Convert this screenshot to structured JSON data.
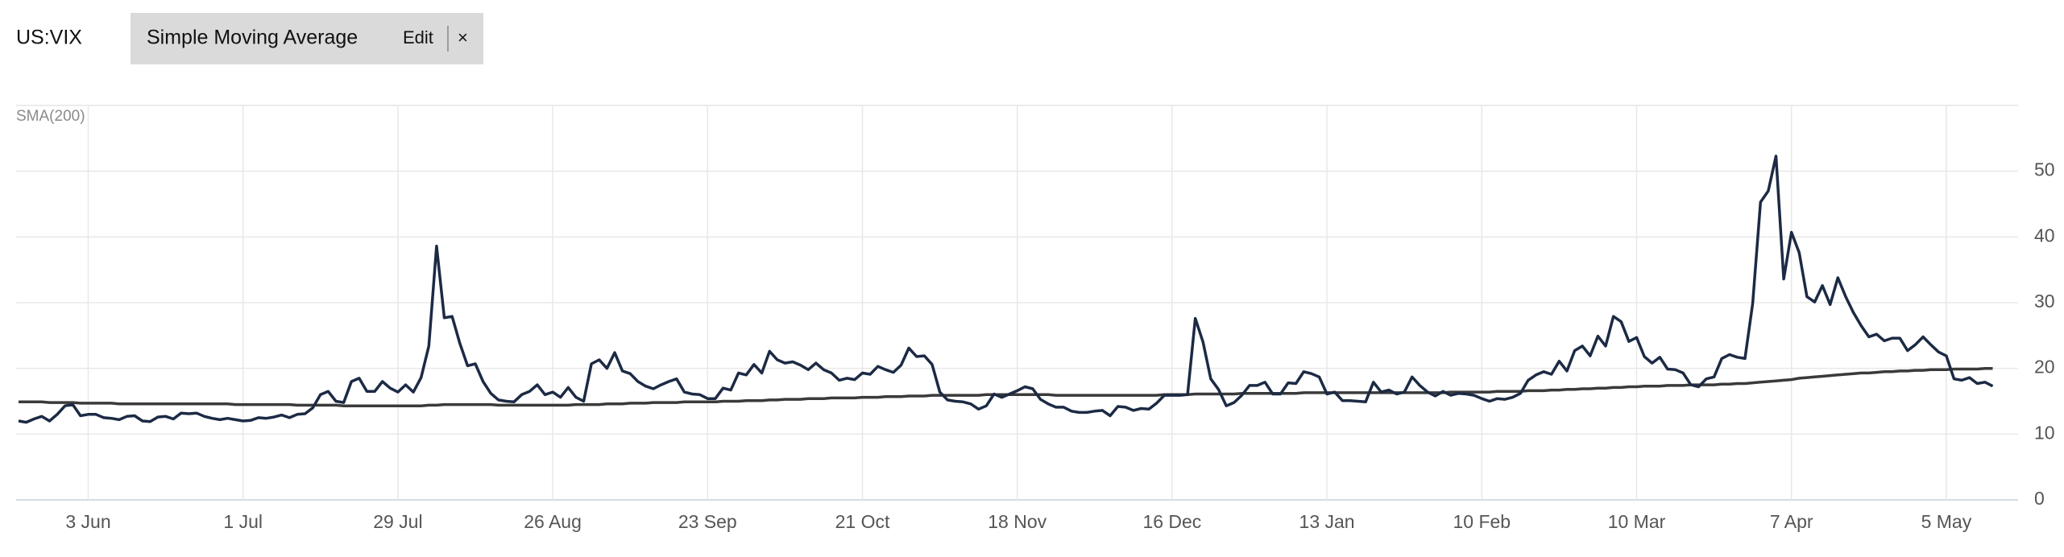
{
  "indicator_chip": {
    "label": "Simple Moving Average",
    "edit": "Edit",
    "close": "×"
  },
  "chart_data": {
    "type": "line",
    "categories": [
      null,
      null,
      null,
      null,
      null,
      null,
      null,
      null,
      null,
      "3 Jun",
      null,
      null,
      null,
      null,
      null,
      null,
      null,
      null,
      null,
      null,
      null,
      null,
      null,
      null,
      null,
      null,
      null,
      null,
      null,
      "1 Jul",
      null,
      null,
      null,
      null,
      null,
      null,
      null,
      null,
      null,
      null,
      null,
      null,
      null,
      null,
      null,
      null,
      null,
      null,
      null,
      "29 Jul",
      null,
      null,
      null,
      null,
      null,
      null,
      null,
      null,
      null,
      null,
      null,
      null,
      null,
      null,
      null,
      null,
      null,
      null,
      null,
      "26 Aug",
      null,
      null,
      null,
      null,
      null,
      null,
      null,
      null,
      null,
      null,
      null,
      null,
      null,
      null,
      null,
      null,
      null,
      null,
      null,
      "23 Sep",
      null,
      null,
      null,
      null,
      null,
      null,
      null,
      null,
      null,
      null,
      null,
      null,
      null,
      null,
      null,
      null,
      null,
      null,
      null,
      "21 Oct",
      null,
      null,
      null,
      null,
      null,
      null,
      null,
      null,
      null,
      null,
      null,
      null,
      null,
      null,
      null,
      null,
      null,
      null,
      null,
      "18 Nov",
      null,
      null,
      null,
      null,
      null,
      null,
      null,
      null,
      null,
      null,
      null,
      null,
      null,
      null,
      null,
      null,
      null,
      null,
      null,
      "16 Dec",
      null,
      null,
      null,
      null,
      null,
      null,
      null,
      null,
      null,
      null,
      null,
      null,
      null,
      null,
      null,
      null,
      null,
      null,
      null,
      "13 Jan",
      null,
      null,
      null,
      null,
      null,
      null,
      null,
      null,
      null,
      null,
      null,
      null,
      null,
      null,
      null,
      null,
      null,
      null,
      null,
      "10 Feb",
      null,
      null,
      null,
      null,
      null,
      null,
      null,
      null,
      null,
      null,
      null,
      null,
      null,
      null,
      null,
      null,
      null,
      null,
      null,
      "10 Mar",
      null,
      null,
      null,
      null,
      null,
      null,
      null,
      null,
      null,
      null,
      null,
      null,
      null,
      null,
      null,
      null,
      null,
      null,
      null,
      "7 Apr",
      null,
      null,
      null,
      null,
      null,
      null,
      null,
      null,
      null,
      null,
      null,
      null,
      null,
      null,
      null,
      null,
      null,
      null,
      null,
      "5 May",
      null,
      null,
      null,
      null,
      null,
      null
    ],
    "series": [
      {
        "name": "US:VIX",
        "color": "#1c2a44",
        "values": [
          12,
          11.8,
          12.3,
          12.7,
          12,
          13,
          14.3,
          14.5,
          12.8,
          13,
          13,
          12.5,
          12.4,
          12.2,
          12.7,
          12.8,
          12,
          11.9,
          12.6,
          12.7,
          12.3,
          13.2,
          13.1,
          13.2,
          12.7,
          12.4,
          12.2,
          12.4,
          12.2,
          12.0,
          12.1,
          12.5,
          12.4,
          12.6,
          12.9,
          12.5,
          13,
          13.1,
          14,
          16,
          16.5,
          15,
          14.8,
          18,
          18.5,
          16.5,
          16.5,
          18,
          17,
          16.4,
          17.5,
          16.4,
          18.6,
          23.4,
          38.6,
          27.7,
          27.9,
          23.8,
          20.4,
          20.7,
          18,
          16.2,
          15.2,
          15,
          14.9,
          16,
          16.5,
          17.5,
          16,
          16.4,
          15.6,
          17.1,
          15.6,
          15,
          20.7,
          21.3,
          20,
          22.4,
          19.6,
          19.2,
          18,
          17.3,
          16.9,
          17.5,
          18,
          18.4,
          16.4,
          16.1,
          16,
          15.4,
          15.4,
          17,
          16.7,
          19.3,
          19,
          20.6,
          19.3,
          22.6,
          21.3,
          20.8,
          21,
          20.5,
          19.8,
          20.8,
          19.8,
          19.3,
          18.2,
          18.5,
          18.3,
          19.3,
          19.1,
          20.3,
          19.8,
          19.4,
          20.5,
          23.1,
          21.8,
          21.9,
          20.6,
          16.4,
          15.2,
          15,
          14.9,
          14.6,
          13.8,
          14.3,
          16.1,
          15.6,
          16.1,
          16.6,
          17.2,
          16.9,
          15.3,
          14.6,
          14.1,
          14.1,
          13.5,
          13.3,
          13.3,
          13.5,
          13.6,
          12.8,
          14.2,
          14.1,
          13.6,
          13.9,
          13.8,
          14.7,
          15.9,
          15.9,
          15.9,
          16.0,
          27.6,
          24,
          18.4,
          16.8,
          14.3,
          14.8,
          15.9,
          17.4,
          17.4,
          17.9,
          16.1,
          16.1,
          17.8,
          17.7,
          19.5,
          19.2,
          18.7,
          16.1,
          16.4,
          15.1,
          15.1,
          15.0,
          14.9,
          17.9,
          16.4,
          16.7,
          16.1,
          16.4,
          18.7,
          17.4,
          16.4,
          15.8,
          16.5,
          15.9,
          16.2,
          16.1,
          15.9,
          15.4,
          15.0,
          15.4,
          15.3,
          15.6,
          16.2,
          18.2,
          19,
          19.5,
          19.1,
          21.1,
          19.6,
          22.7,
          23.4,
          21.9,
          24.9,
          23.4,
          27.9,
          27.1,
          24.1,
          24.7,
          21.8,
          20.8,
          21.7,
          19.9,
          19.8,
          19.3,
          17.5,
          17.2,
          18.4,
          18.7,
          21.5,
          22.1,
          21.7,
          21.5,
          29.9,
          45.3,
          47,
          52.3,
          33.6,
          40.7,
          37.6,
          30.9,
          30.1,
          32.6,
          29.7,
          33.8,
          30.9,
          28.5,
          26.5,
          24.8,
          25.2,
          24.2,
          24.6,
          24.6,
          22.7,
          23.6,
          24.8,
          23.6,
          22.5,
          21.9,
          18.4,
          18.2,
          18.6,
          17.7,
          17.9,
          17.3
        ]
      },
      {
        "name": "SMA(200)",
        "color": "#3a3a3a",
        "values": [
          14.9,
          14.9,
          14.9,
          14.9,
          14.8,
          14.8,
          14.8,
          14.8,
          14.7,
          14.7,
          14.7,
          14.7,
          14.7,
          14.6,
          14.6,
          14.6,
          14.6,
          14.6,
          14.6,
          14.6,
          14.6,
          14.6,
          14.6,
          14.6,
          14.6,
          14.6,
          14.6,
          14.6,
          14.5,
          14.5,
          14.5,
          14.5,
          14.5,
          14.5,
          14.5,
          14.5,
          14.4,
          14.4,
          14.4,
          14.4,
          14.4,
          14.4,
          14.3,
          14.3,
          14.3,
          14.3,
          14.3,
          14.3,
          14.3,
          14.3,
          14.3,
          14.3,
          14.3,
          14.4,
          14.4,
          14.5,
          14.5,
          14.5,
          14.5,
          14.5,
          14.5,
          14.5,
          14.4,
          14.4,
          14.4,
          14.4,
          14.4,
          14.4,
          14.4,
          14.4,
          14.4,
          14.4,
          14.5,
          14.5,
          14.5,
          14.5,
          14.6,
          14.6,
          14.6,
          14.7,
          14.7,
          14.7,
          14.8,
          14.8,
          14.8,
          14.8,
          14.9,
          14.9,
          14.9,
          14.9,
          14.9,
          15.0,
          15.0,
          15.0,
          15.1,
          15.1,
          15.1,
          15.2,
          15.2,
          15.3,
          15.3,
          15.3,
          15.4,
          15.4,
          15.4,
          15.5,
          15.5,
          15.5,
          15.5,
          15.6,
          15.6,
          15.6,
          15.7,
          15.7,
          15.7,
          15.8,
          15.8,
          15.8,
          15.9,
          15.9,
          15.9,
          15.9,
          15.9,
          15.9,
          15.9,
          16.0,
          16.0,
          16.0,
          16.0,
          16.0,
          16.0,
          16.0,
          16.0,
          16.0,
          15.9,
          15.9,
          15.9,
          15.9,
          15.9,
          15.9,
          15.9,
          15.9,
          15.9,
          15.9,
          15.9,
          15.9,
          15.9,
          15.9,
          16.0,
          16.0,
          16.0,
          16.0,
          16.1,
          16.1,
          16.1,
          16.1,
          16.1,
          16.1,
          16.2,
          16.2,
          16.2,
          16.2,
          16.2,
          16.2,
          16.2,
          16.2,
          16.3,
          16.3,
          16.3,
          16.3,
          16.3,
          16.3,
          16.3,
          16.3,
          16.3,
          16.3,
          16.3,
          16.3,
          16.3,
          16.3,
          16.3,
          16.3,
          16.3,
          16.3,
          16.3,
          16.4,
          16.4,
          16.4,
          16.4,
          16.4,
          16.4,
          16.5,
          16.5,
          16.5,
          16.5,
          16.6,
          16.6,
          16.6,
          16.7,
          16.7,
          16.8,
          16.8,
          16.9,
          16.9,
          17.0,
          17.0,
          17.1,
          17.1,
          17.2,
          17.2,
          17.3,
          17.3,
          17.3,
          17.4,
          17.4,
          17.4,
          17.5,
          17.5,
          17.5,
          17.5,
          17.6,
          17.6,
          17.7,
          17.7,
          17.8,
          17.9,
          18.0,
          18.1,
          18.2,
          18.3,
          18.5,
          18.6,
          18.7,
          18.8,
          18.9,
          19.0,
          19.1,
          19.2,
          19.3,
          19.3,
          19.4,
          19.5,
          19.5,
          19.6,
          19.6,
          19.7,
          19.7,
          19.8,
          19.8,
          19.8,
          19.9,
          19.9,
          19.9,
          19.9,
          20.0,
          20.0
        ]
      }
    ],
    "ylim": [
      0,
      60
    ],
    "yticks": [
      0,
      10,
      20,
      30,
      40,
      50
    ],
    "grid": true
  }
}
